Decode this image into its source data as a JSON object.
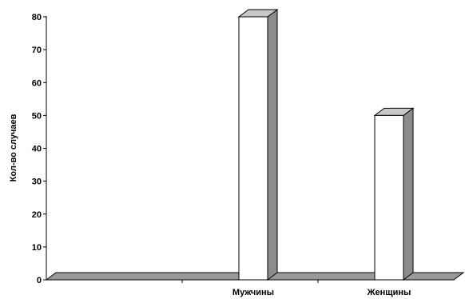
{
  "chart_data": {
    "type": "bar",
    "categories": [
      "",
      "Мужчины",
      "Женщины"
    ],
    "values": [
      0,
      80,
      50
    ],
    "ylabel": "Кол-во случаев",
    "xlabel": "",
    "ylim": [
      0,
      80
    ],
    "yticks": [
      "0",
      "10",
      "20",
      "30",
      "40",
      "50",
      "60",
      "70",
      "80"
    ],
    "grid": false,
    "style": "3d-column"
  }
}
